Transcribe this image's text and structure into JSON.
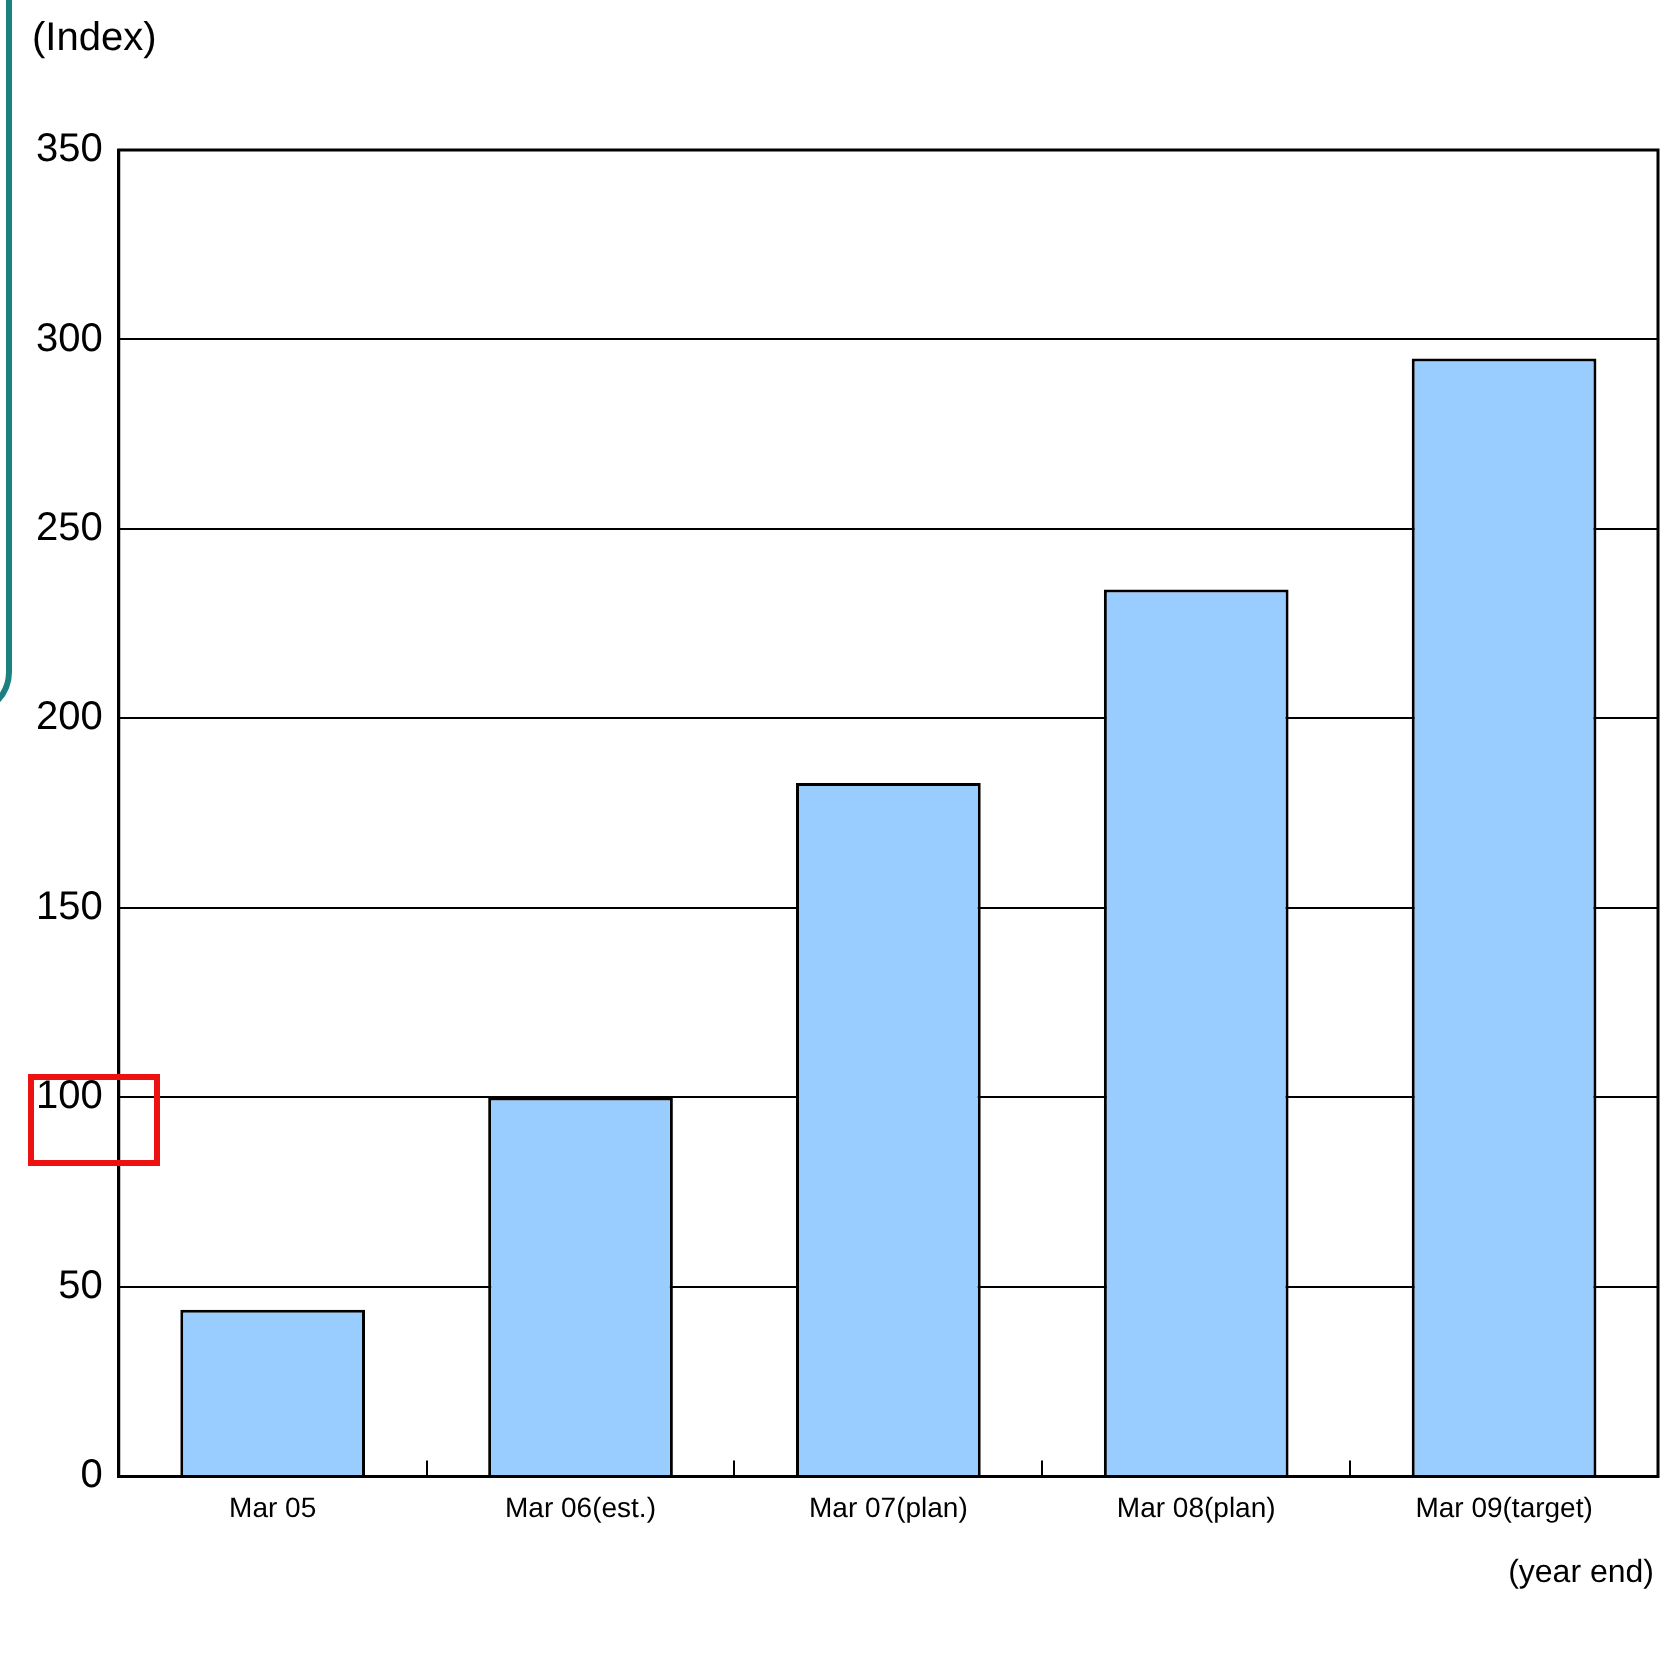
{
  "chart_data": {
    "type": "bar",
    "ylabel": "(Index)",
    "xlabel": "(year end)",
    "categories": [
      "Mar 05",
      "Mar 06(est.)",
      "Mar 07(plan)",
      "Mar 08(plan)",
      "Mar 09(target)"
    ],
    "values": [
      44,
      100,
      183,
      234,
      295
    ],
    "color": "#99ccff",
    "ylim": [
      0,
      350
    ],
    "yticks": [
      0,
      50,
      100,
      150,
      200,
      250,
      300,
      350
    ],
    "grid": "y",
    "legend": false
  }
}
